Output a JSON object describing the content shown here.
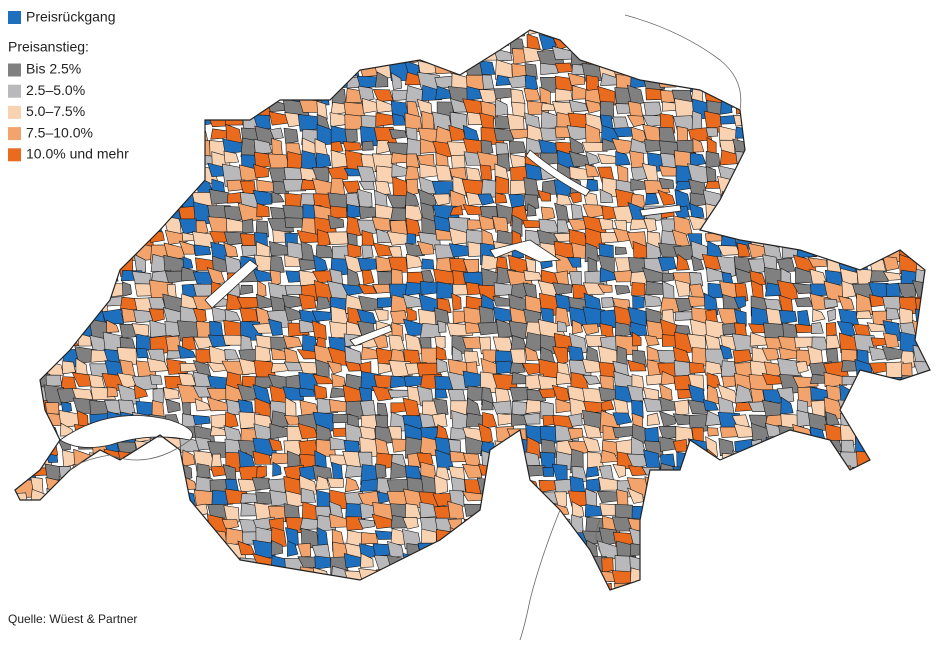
{
  "legend": {
    "decline": {
      "label": "Preisrückgang",
      "color": "#1f6fbf"
    },
    "increase_title": "Preisanstieg:",
    "items": [
      {
        "label": "Bis 2.5%",
        "color": "#808080"
      },
      {
        "label": "2.5–5.0%",
        "color": "#b9b9bb"
      },
      {
        "label": "5.0–7.5%",
        "color": "#f9d2b2"
      },
      {
        "label": "7.5–10.0%",
        "color": "#f3a46c"
      },
      {
        "label": "10.0% und mehr",
        "color": "#ea6a1e"
      }
    ]
  },
  "source": "Quelle: Wüest & Partner"
}
